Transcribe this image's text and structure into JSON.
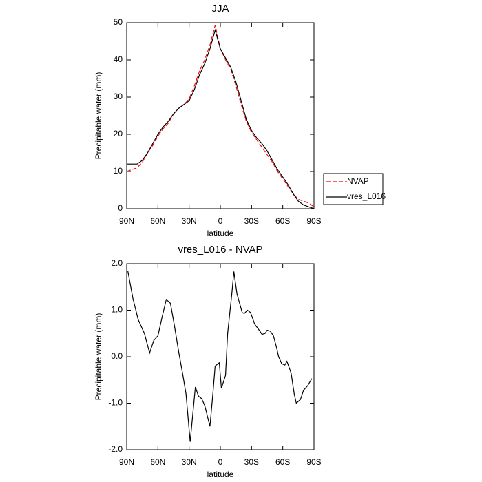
{
  "chart_data": [
    {
      "type": "line",
      "title": "JJA",
      "xlabel": "latitude",
      "ylabel": "Precipitable water (mm)",
      "xlim": [
        90,
        -90
      ],
      "xticks": [
        {
          "value": 90,
          "label": "90N"
        },
        {
          "value": 60,
          "label": "60N"
        },
        {
          "value": 30,
          "label": "30N"
        },
        0,
        {
          "value": -30,
          "label": "30S"
        },
        {
          "value": -60,
          "label": "60S"
        },
        {
          "value": -90,
          "label": "90S"
        }
      ],
      "ylim": [
        0,
        50
      ],
      "yticks": [
        0,
        10,
        20,
        30,
        40,
        50
      ],
      "x": [
        90,
        85,
        80,
        75,
        70,
        65,
        60,
        55,
        50,
        45,
        40,
        35,
        30,
        25,
        20,
        15,
        10,
        5,
        0,
        -5,
        -10,
        -15,
        -20,
        -25,
        -30,
        -35,
        -40,
        -45,
        -50,
        -55,
        -60,
        -65,
        -70,
        -75,
        -80,
        -85,
        -90
      ],
      "legend": "right",
      "series": [
        {
          "name": "NVAP",
          "color": "#ff0000",
          "dash": true,
          "values": [
            10,
            10.5,
            11,
            12.5,
            15,
            17,
            19.5,
            21.5,
            23,
            25.5,
            27,
            28,
            29.5,
            33,
            37,
            40,
            44,
            49.3,
            43,
            40,
            37.5,
            33,
            28,
            23.5,
            20.5,
            18.5,
            16.5,
            14.5,
            12.5,
            10,
            8,
            6,
            4,
            2.5,
            2,
            1.5,
            0.5
          ]
        },
        {
          "name": "vres_L016",
          "color": "#000000",
          "dash": false,
          "values": [
            12,
            12,
            12,
            13,
            15,
            17.5,
            20,
            22,
            23.5,
            25.5,
            27,
            28,
            29,
            32,
            36,
            39,
            43,
            48,
            43,
            40.5,
            38,
            34,
            29,
            24,
            21,
            19,
            17.5,
            15.5,
            13,
            10.5,
            8.5,
            6.5,
            4,
            2,
            1,
            0.5,
            0
          ]
        }
      ]
    },
    {
      "type": "line",
      "title": "vres_L016 - NVAP",
      "xlabel": "latitude",
      "ylabel": "Precipitable water (mm)",
      "xlim": [
        90,
        -90
      ],
      "xticks": [
        {
          "value": 90,
          "label": "90N"
        },
        {
          "value": 60,
          "label": "60N"
        },
        {
          "value": 30,
          "label": "30N"
        },
        0,
        {
          "value": -30,
          "label": "30S"
        },
        {
          "value": -60,
          "label": "60S"
        },
        {
          "value": -90,
          "label": "90S"
        }
      ],
      "ylim": [
        -2,
        2
      ],
      "yticks": [
        {
          "value": -2,
          "label": "-2.0"
        },
        {
          "value": -1,
          "label": "-1.0"
        },
        {
          "value": 0,
          "label": "0.0"
        },
        {
          "value": 1,
          "label": "1.0"
        },
        {
          "value": 2,
          "label": "2.0"
        }
      ],
      "x": [
        89,
        84,
        79,
        73,
        68,
        64,
        60,
        56,
        52,
        48,
        44,
        40,
        36,
        33,
        29,
        24,
        21,
        18,
        15,
        10,
        7,
        5,
        1,
        -1,
        -5,
        -7,
        -11,
        -13,
        -16,
        -21,
        -23,
        -26,
        -29,
        -33,
        -38,
        -40,
        -43,
        -45,
        -48,
        -51,
        -54,
        -56,
        -59,
        -62,
        -64,
        -68,
        -71,
        -73,
        -77,
        -80,
        -84,
        -88
      ],
      "series": [
        {
          "color": "#000000",
          "dash": false,
          "values": [
            1.85,
            1.25,
            0.8,
            0.5,
            0.08,
            0.35,
            0.45,
            0.85,
            1.23,
            1.15,
            0.65,
            0.1,
            -0.4,
            -0.8,
            -1.83,
            -0.65,
            -0.85,
            -0.9,
            -1.05,
            -1.5,
            -0.75,
            -0.2,
            -0.13,
            -0.68,
            -0.4,
            0.5,
            1.35,
            1.83,
            1.35,
            0.95,
            0.93,
            1.0,
            0.95,
            0.7,
            0.55,
            0.48,
            0.5,
            0.57,
            0.55,
            0.45,
            0.2,
            0.0,
            -0.15,
            -0.18,
            -0.1,
            -0.35,
            -0.8,
            -1.0,
            -0.92,
            -0.72,
            -0.62,
            -0.47
          ]
        }
      ]
    }
  ]
}
